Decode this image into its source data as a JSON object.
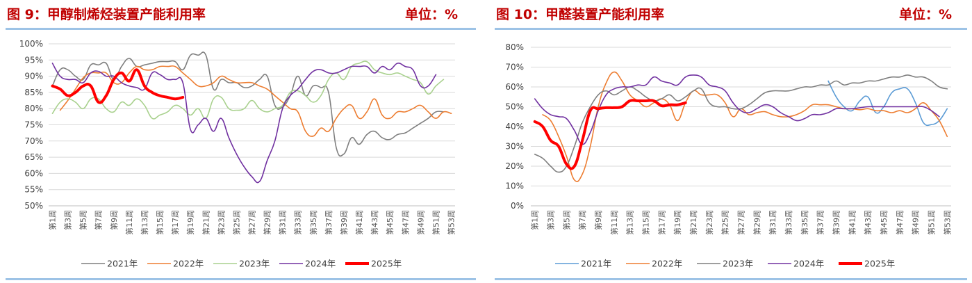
{
  "chart_data": [
    {
      "type": "line",
      "title": "图 9：甲醇制烯烃装置产能利用率",
      "unit_label": "单位：%",
      "ylim": [
        50,
        100
      ],
      "yticks": [
        50,
        55,
        60,
        65,
        70,
        75,
        80,
        85,
        90,
        95,
        100
      ],
      "ytick_format": "percent",
      "categories": [
        "第1周",
        "第2周",
        "第3周",
        "第4周",
        "第5周",
        "第6周",
        "第7周",
        "第8周",
        "第9周",
        "第10周",
        "第11周",
        "第12周",
        "第13周",
        "第14周",
        "第15周",
        "第16周",
        "第17周",
        "第18周",
        "第19周",
        "第20周",
        "第21周",
        "第22周",
        "第23周",
        "第24周",
        "第25周",
        "第26周",
        "第27周",
        "第28周",
        "第29周",
        "第30周",
        "第31周",
        "第32周",
        "第33周",
        "第34周",
        "第35周",
        "第36周",
        "第37周",
        "第38周",
        "第39周",
        "第40周",
        "第41周",
        "第42周",
        "第43周",
        "第44周",
        "第45周",
        "第46周",
        "第47周",
        "第48周",
        "第49周",
        "第50周",
        "第51周",
        "第52周",
        "第53周"
      ],
      "grid": true,
      "legend_position": "bottom",
      "series": [
        {
          "name": "2021年",
          "color": "#7f7f7f",
          "width": 1.6,
          "values": [
            87,
            92,
            92,
            90,
            89,
            93.5,
            93.5,
            94,
            89,
            93,
            95.5,
            93,
            93.5,
            94,
            94.5,
            94.5,
            94.5,
            92,
            96.5,
            96.5,
            96.5,
            86,
            89,
            88,
            88,
            86.5,
            87,
            89,
            90,
            81,
            80.5,
            84,
            90,
            84,
            87,
            86.5,
            85,
            68,
            66,
            71,
            69,
            72,
            73,
            71,
            70.5,
            72,
            72.5,
            74,
            75.5,
            77,
            79,
            79,
            null
          ]
        },
        {
          "name": "2022年",
          "color": "#ed7d31",
          "width": 1.6,
          "values": [
            null,
            79.5,
            82.5,
            86,
            89.5,
            91,
            91,
            91,
            88,
            88,
            91,
            93,
            92,
            92,
            93,
            93,
            93,
            91,
            89,
            87,
            87,
            88,
            90,
            89,
            88,
            88,
            88,
            87,
            86,
            84,
            82,
            80,
            79,
            73,
            71.5,
            74,
            73,
            77,
            80,
            81,
            77,
            79,
            83,
            78,
            77,
            79,
            79,
            80,
            81,
            79,
            77,
            79,
            78.5
          ]
        },
        {
          "name": "2023年",
          "color": "#a9d18e",
          "width": 1.6,
          "values": [
            78.5,
            82,
            83,
            82,
            80,
            83,
            83,
            80,
            79,
            82,
            81,
            83,
            81,
            77,
            78,
            79,
            81,
            80,
            78,
            80,
            77,
            83,
            83.5,
            80,
            79.5,
            80,
            82.5,
            80,
            79,
            80,
            81,
            85,
            85.5,
            84,
            82,
            84,
            89,
            91,
            89,
            93,
            94,
            94.5,
            92,
            91,
            90.5,
            91,
            90,
            89,
            88,
            84.5,
            87,
            89,
            null
          ]
        },
        {
          "name": "2024年",
          "color": "#7030a0",
          "width": 1.6,
          "values": [
            94,
            90,
            89,
            89,
            88,
            91,
            91.5,
            90,
            90,
            88,
            87,
            86.5,
            86,
            91,
            90.5,
            89,
            89,
            88,
            73.5,
            75,
            77,
            73,
            77,
            71,
            66,
            62,
            59,
            57.5,
            64,
            70,
            80,
            84,
            86,
            89,
            91.5,
            92,
            91,
            91,
            92,
            93,
            93,
            93,
            91,
            93,
            92,
            94,
            93,
            92,
            87,
            87,
            90.5,
            null,
            null
          ]
        },
        {
          "name": "2025年",
          "color": "#ff0000",
          "width": 4,
          "values": [
            87,
            86,
            84,
            85,
            87,
            87,
            82,
            84,
            89,
            91,
            88.5,
            92,
            87,
            85,
            84,
            83.5,
            83,
            83.5,
            null,
            null,
            null,
            null,
            null,
            null,
            null,
            null,
            null,
            null,
            null,
            null,
            null,
            null,
            null,
            null,
            null,
            null,
            null,
            null,
            null,
            null,
            null,
            null,
            null,
            null,
            null,
            null,
            null,
            null,
            null,
            null,
            null,
            null,
            null
          ]
        }
      ]
    },
    {
      "type": "line",
      "title": "图 10：甲醛装置产能利用率",
      "unit_label": "单位：%",
      "ylim": [
        0,
        80
      ],
      "yticks": [
        0,
        10,
        20,
        30,
        40,
        50,
        60,
        70,
        80
      ],
      "ytick_format": "percent",
      "categories": [
        "第1周",
        "第2周",
        "第3周",
        "第4周",
        "第5周",
        "第6周",
        "第7周",
        "第8周",
        "第9周",
        "第10周",
        "第11周",
        "第12周",
        "第13周",
        "第14周",
        "第15周",
        "第16周",
        "第17周",
        "第18周",
        "第19周",
        "第20周",
        "第21周",
        "第22周",
        "第23周",
        "第24周",
        "第25周",
        "第26周",
        "第27周",
        "第28周",
        "第29周",
        "第30周",
        "第31周",
        "第32周",
        "第33周",
        "第34周",
        "第35周",
        "第36周",
        "第37周",
        "第38周",
        "第39周",
        "第40周",
        "第41周",
        "第42周",
        "第43周",
        "第44周",
        "第45周",
        "第46周",
        "第47周",
        "第48周",
        "第49周",
        "第50周",
        "第51周",
        "第52周",
        "第53周"
      ],
      "grid": true,
      "legend_position": "bottom",
      "series": [
        {
          "name": "2021年",
          "color": "#5b9bd5",
          "width": 1.6,
          "values": [
            null,
            null,
            null,
            null,
            null,
            null,
            null,
            null,
            null,
            null,
            null,
            null,
            null,
            null,
            null,
            null,
            null,
            null,
            null,
            null,
            null,
            null,
            null,
            null,
            null,
            null,
            null,
            null,
            null,
            null,
            null,
            null,
            null,
            null,
            null,
            null,
            null,
            63,
            55,
            50,
            48,
            53,
            55,
            47,
            50,
            57,
            59,
            59,
            52,
            42,
            41,
            43,
            49
          ]
        },
        {
          "name": "2022年",
          "color": "#ed7d31",
          "width": 1.6,
          "values": [
            null,
            46,
            43,
            35,
            25,
            13,
            16,
            30,
            50,
            62,
            67.5,
            63,
            56,
            53,
            50,
            52,
            54,
            51,
            43,
            52,
            58,
            56,
            56,
            56,
            52,
            45,
            49,
            46,
            47,
            47.5,
            46,
            45,
            45,
            46,
            48,
            51,
            51,
            51,
            50,
            49,
            49,
            48.5,
            49,
            48,
            48,
            47,
            48,
            47,
            49,
            52,
            48,
            43,
            35
          ]
        },
        {
          "name": "2023年",
          "color": "#7f7f7f",
          "width": 1.6,
          "values": [
            26,
            24,
            20,
            17,
            20,
            30,
            42,
            50,
            56,
            58,
            56,
            58,
            60,
            58,
            55,
            53,
            54,
            56,
            53,
            55,
            58,
            59,
            52,
            50,
            50,
            49,
            49,
            51,
            54,
            57,
            58,
            58,
            58,
            59,
            60,
            60,
            61,
            61,
            63,
            61,
            62,
            62,
            63,
            63,
            64,
            65,
            65,
            66,
            65,
            65,
            63,
            60,
            59
          ]
        },
        {
          "name": "2024年",
          "color": "#7030a0",
          "width": 1.6,
          "values": [
            54,
            49,
            46,
            45,
            44,
            38,
            31,
            37,
            48,
            56,
            59,
            60,
            60,
            61,
            61,
            65,
            63,
            62,
            61,
            65,
            66,
            65,
            61,
            60,
            58,
            52,
            48,
            47,
            49,
            51,
            50,
            47,
            45,
            43,
            44,
            46,
            46,
            47,
            49,
            49,
            49,
            49.5,
            50,
            50,
            50,
            50,
            50,
            50,
            50,
            50,
            48,
            45,
            null
          ]
        },
        {
          "name": "2025年",
          "color": "#ff0000",
          "width": 4,
          "values": [
            42.5,
            40,
            33,
            30,
            21,
            20,
            33,
            48,
            49,
            49.5,
            49.5,
            50,
            53,
            53,
            53,
            53,
            50.5,
            51,
            51,
            52,
            null,
            null,
            null,
            null,
            null,
            null,
            null,
            null,
            null,
            null,
            null,
            null,
            null,
            null,
            null,
            null,
            null,
            null,
            null,
            null,
            null,
            null,
            null,
            null,
            null,
            null,
            null,
            null,
            null,
            null,
            null,
            null,
            null
          ]
        }
      ]
    }
  ]
}
